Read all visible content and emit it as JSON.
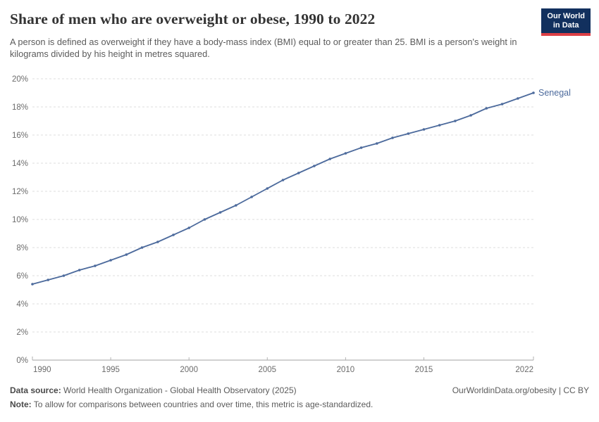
{
  "header": {
    "title": "Share of men who are overweight or obese, 1990 to 2022",
    "subtitle": "A person is defined as overweight if they have a body-mass index (BMI) equal to or greater than 25. BMI is a person's weight in kilograms divided by his height in metres squared."
  },
  "logo": {
    "line1": "Our World",
    "line2": "in Data",
    "bg_color": "#12305e",
    "accent_color": "#dc3f45"
  },
  "chart_data": {
    "type": "line",
    "title": "Share of men who are overweight or obese, 1990 to 2022",
    "x": [
      1990,
      1991,
      1992,
      1993,
      1994,
      1995,
      1996,
      1997,
      1998,
      1999,
      2000,
      2001,
      2002,
      2003,
      2004,
      2005,
      2006,
      2007,
      2008,
      2009,
      2010,
      2011,
      2012,
      2013,
      2014,
      2015,
      2016,
      2017,
      2018,
      2019,
      2020,
      2021,
      2022
    ],
    "series": [
      {
        "name": "Senegal",
        "color": "#4c6a9c",
        "values": [
          5.4,
          5.7,
          6.0,
          6.4,
          6.7,
          7.1,
          7.5,
          8.0,
          8.4,
          8.9,
          9.4,
          10.0,
          10.5,
          11.0,
          11.6,
          12.2,
          12.8,
          13.3,
          13.8,
          14.3,
          14.7,
          15.1,
          15.4,
          15.8,
          16.1,
          16.4,
          16.7,
          17.0,
          17.4,
          17.9,
          18.2,
          18.6,
          19.0
        ]
      }
    ],
    "xlabel": "",
    "ylabel": "",
    "ylim": [
      0,
      20
    ],
    "ytick_step": 2,
    "ytick_suffix": "%",
    "xticks": [
      1990,
      1995,
      2000,
      2005,
      2010,
      2015,
      2022
    ],
    "grid": "horizontal-dashed",
    "legend": "end-of-line-label",
    "colors": {
      "gridline": "#dcdcdc",
      "axis_line": "#a0a0a0",
      "tick": "#b3b3b3",
      "tick_label": "#6b6b6b"
    }
  },
  "footer": {
    "datasource_label": "Data source:",
    "datasource": "World Health Organization - Global Health Observatory (2025)",
    "note_label": "Note:",
    "note": "To allow for comparisons between countries and over time, this metric is age-standardized.",
    "credit": "OurWorldinData.org/obesity | CC BY"
  }
}
